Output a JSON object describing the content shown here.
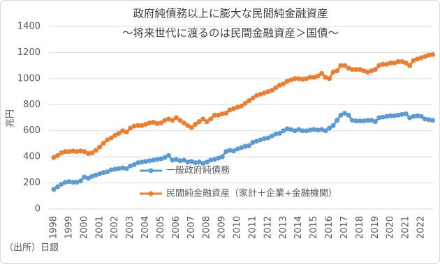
{
  "chart_data": {
    "type": "line",
    "title": "政府純債務以上に膨大な民間純金融資産",
    "subtitle": "～将来世代に渡るのは民間金融資産＞国債～",
    "y_label": "兆円",
    "source": "（出所）日銀",
    "categories": [
      "1998",
      null,
      null,
      null,
      "1999",
      null,
      null,
      null,
      "2000",
      null,
      null,
      null,
      "2001",
      null,
      null,
      null,
      "2002",
      null,
      null,
      null,
      "2003",
      null,
      null,
      null,
      "2004",
      null,
      null,
      null,
      "2005",
      null,
      null,
      null,
      "2006",
      null,
      null,
      null,
      "2007",
      null,
      null,
      null,
      "2008",
      null,
      null,
      null,
      "2009",
      null,
      null,
      null,
      "2010",
      null,
      null,
      null,
      "2011",
      null,
      null,
      null,
      "2012",
      null,
      null,
      null,
      "2013",
      null,
      null,
      null,
      "2014",
      null,
      null,
      null,
      "2015",
      null,
      null,
      null,
      "2016",
      null,
      null,
      null,
      "2017",
      null,
      null,
      null,
      "2018",
      null,
      null,
      null,
      "2019",
      null,
      null,
      null,
      "2020",
      null,
      null,
      null,
      "2021",
      null,
      null,
      null,
      "2022",
      null,
      null,
      null
    ],
    "series": [
      {
        "name": "一般政府純債務",
        "color": "#5b9bd5",
        "values": [
          150,
          170,
          190,
          205,
          210,
          205,
          205,
          215,
          245,
          235,
          250,
          260,
          270,
          280,
          285,
          300,
          305,
          310,
          315,
          310,
          330,
          340,
          355,
          360,
          365,
          370,
          375,
          380,
          385,
          395,
          410,
          375,
          380,
          370,
          375,
          360,
          365,
          355,
          360,
          350,
          360,
          375,
          380,
          390,
          400,
          440,
          450,
          445,
          460,
          470,
          480,
          485,
          510,
          520,
          530,
          540,
          545,
          560,
          575,
          580,
          600,
          615,
          610,
          600,
          610,
          600,
          600,
          605,
          610,
          605,
          610,
          600,
          620,
          640,
          680,
          720,
          735,
          720,
          680,
          675,
          675,
          675,
          680,
          680,
          670,
          700,
          705,
          710,
          715,
          715,
          720,
          725,
          730,
          700,
          710,
          715,
          710,
          690,
          685,
          680
        ]
      },
      {
        "name": "民間純金融資産（家計＋企業+金融機関）",
        "color": "#ed7d31",
        "values": [
          395,
          410,
          430,
          440,
          440,
          445,
          440,
          445,
          440,
          425,
          430,
          450,
          475,
          505,
          530,
          545,
          565,
          580,
          600,
          590,
          620,
          635,
          640,
          640,
          650,
          660,
          665,
          655,
          660,
          680,
          690,
          680,
          700,
          680,
          660,
          640,
          625,
          650,
          670,
          690,
          670,
          690,
          720,
          720,
          730,
          735,
          760,
          770,
          780,
          790,
          810,
          830,
          850,
          870,
          880,
          890,
          900,
          910,
          930,
          950,
          960,
          980,
          990,
          1000,
          1000,
          995,
          1000,
          1010,
          1010,
          1020,
          1040,
          1010,
          1000,
          1050,
          1060,
          1100,
          1100,
          1080,
          1070,
          1070,
          1070,
          1060,
          1050,
          1060,
          1070,
          1100,
          1110,
          1110,
          1120,
          1120,
          1130,
          1130,
          1120,
          1100,
          1140,
          1150,
          1160,
          1170,
          1180,
          1185
        ]
      }
    ],
    "ylim": [
      0,
      1400
    ],
    "yticks": [
      0,
      200,
      400,
      600,
      800,
      1000,
      1200,
      1400
    ],
    "grid": true
  }
}
